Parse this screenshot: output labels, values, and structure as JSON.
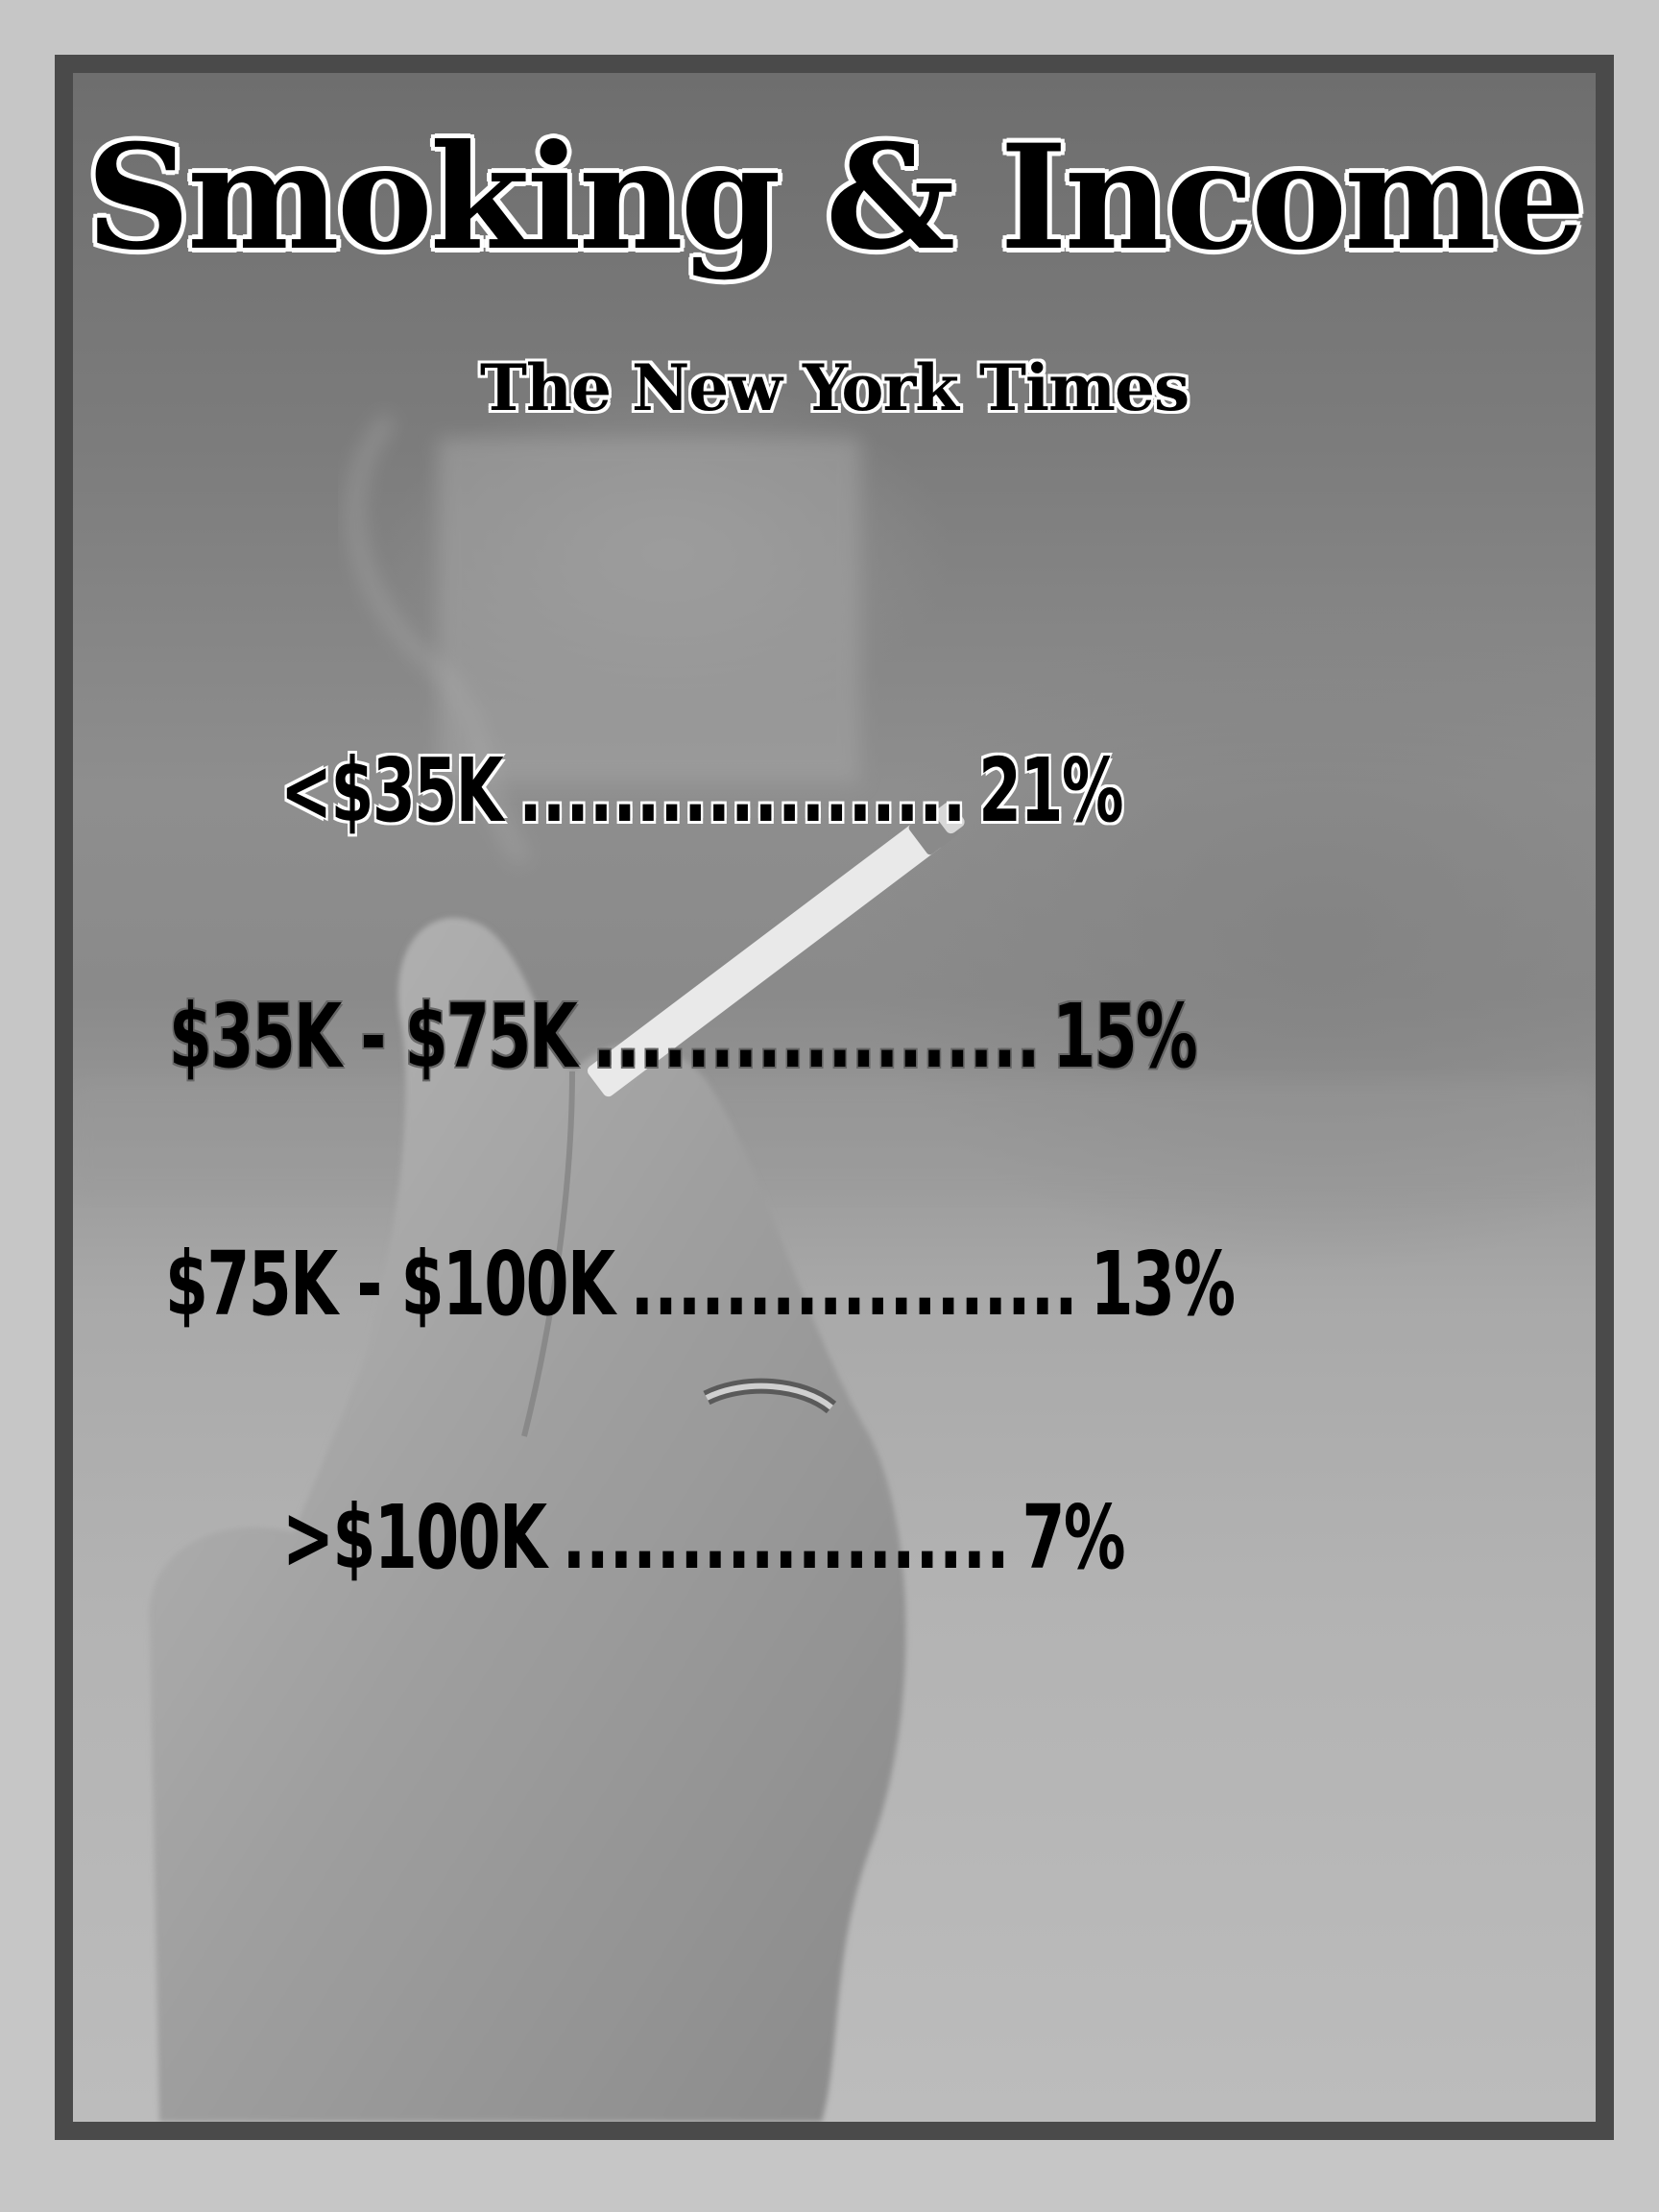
{
  "title": "Smoking & Income",
  "source": "The New York Times",
  "rows": [
    {
      "label": "<$35K",
      "leader": "....................................",
      "value": "21%"
    },
    {
      "label": "$35K - $75K",
      "leader": "....................................",
      "value": "15%"
    },
    {
      "label": "$75K - $100K",
      "leader": "....................................",
      "value": "13%"
    },
    {
      "label": ">$100K",
      "leader": "....................................",
      "value": "7%"
    }
  ]
}
